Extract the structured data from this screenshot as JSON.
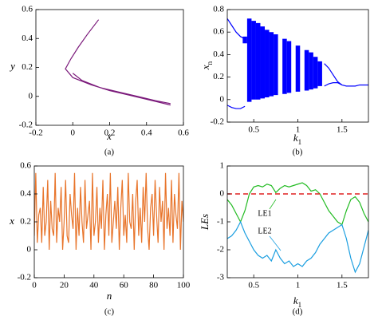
{
  "chart_data": [
    {
      "type": "line",
      "caption": "(a)",
      "xlabel": "x",
      "ylabel": "y",
      "x": [
        0.14,
        0.08,
        0.03,
        -0.01,
        -0.04,
        0.0,
        0.1,
        0.2,
        0.3,
        0.4,
        0.53,
        null,
        0.0,
        0.05,
        0.15,
        0.25,
        0.35,
        0.45,
        0.53
      ],
      "series": [
        {
          "color": "#7b1a7b",
          "values": [
            0.53,
            0.43,
            0.34,
            0.26,
            0.19,
            0.13,
            0.08,
            0.04,
            0.01,
            -0.02,
            -0.06,
            null,
            0.16,
            0.11,
            0.06,
            0.03,
            0.0,
            -0.03,
            -0.05
          ]
        }
      ],
      "xlim": [
        -0.2,
        0.6
      ],
      "xticks": [
        -0.2,
        0,
        0.2,
        0.4,
        0.6
      ],
      "ylim": [
        -0.2,
        0.6
      ],
      "yticks": [
        -0.2,
        0,
        0.2,
        0.4,
        0.6
      ]
    },
    {
      "type": "line",
      "caption": "(b)",
      "xlabel": "k",
      "xlabel_sub": "1",
      "ylabel": "x",
      "ylabel_sub": "n",
      "x": [
        0.2,
        0.25,
        0.3,
        0.35,
        0.4,
        0.45,
        0.5,
        0.55,
        0.6,
        0.65,
        0.7,
        0.75,
        0.8,
        0.85,
        0.9,
        0.95,
        1.0,
        1.05,
        1.1,
        1.15,
        1.2,
        1.25,
        1.3,
        1.35,
        1.4,
        1.45,
        1.5,
        1.55,
        1.6,
        1.65,
        1.7,
        1.75,
        1.8
      ],
      "series": [
        {
          "color": "#0000ff",
          "values": [
            0.72,
            0.66,
            0.6,
            0.56,
            0.54,
            null,
            null,
            null,
            null,
            null,
            null,
            null,
            null,
            null,
            null,
            null,
            null,
            null,
            null,
            null,
            null,
            null,
            0.32,
            0.28,
            0.22,
            0.16,
            0.13,
            0.12,
            0.12,
            0.12,
            0.13,
            0.13,
            0.13
          ]
        },
        {
          "color": "#0000ff",
          "values": [
            -0.05,
            -0.07,
            -0.08,
            -0.08,
            -0.06,
            null,
            null,
            null,
            null,
            null,
            null,
            null,
            null,
            null,
            null,
            null,
            null,
            null,
            null,
            null,
            null,
            null,
            0.12,
            0.14,
            0.15,
            0.15,
            0.13,
            null,
            null,
            null,
            null,
            null,
            null
          ]
        },
        {
          "color": "#0000ff",
          "values": [
            null,
            null,
            null,
            null,
            0.56,
            0.72,
            0.7,
            0.68,
            0.65,
            0.62,
            0.6,
            0.58,
            null,
            0.54,
            0.52,
            null,
            0.48,
            null,
            0.44,
            0.42,
            0.38,
            0.34,
            null,
            null,
            null,
            null,
            null,
            null,
            null,
            null,
            null,
            null,
            null
          ]
        },
        {
          "color": "#0000ff",
          "values": [
            null,
            null,
            null,
            null,
            0.5,
            -0.02,
            0.0,
            0.0,
            0.01,
            0.02,
            0.03,
            0.04,
            null,
            0.05,
            0.06,
            null,
            0.07,
            null,
            0.08,
            0.09,
            0.1,
            0.12,
            null,
            null,
            null,
            null,
            null,
            null,
            null,
            null,
            null,
            null,
            null
          ]
        }
      ],
      "fill_between": [
        2,
        3
      ],
      "xlim": [
        0.2,
        1.8
      ],
      "xticks": [
        0.5,
        1,
        1.5
      ],
      "ylim": [
        -0.2,
        0.8
      ],
      "yticks": [
        -0.2,
        0,
        0.2,
        0.4,
        0.6,
        0.8
      ]
    },
    {
      "type": "line",
      "caption": "(c)",
      "xlabel": "n",
      "ylabel": "x",
      "x": [
        0,
        1,
        2,
        3,
        4,
        5,
        6,
        7,
        8,
        9,
        10,
        11,
        12,
        13,
        14,
        15,
        16,
        17,
        18,
        19,
        20,
        21,
        22,
        23,
        24,
        25,
        26,
        27,
        28,
        29,
        30,
        31,
        32,
        33,
        34,
        35,
        36,
        37,
        38,
        39,
        40,
        41,
        42,
        43,
        44,
        45,
        46,
        47,
        48,
        49,
        50,
        51,
        52,
        53,
        54,
        55,
        56,
        57,
        58,
        59,
        60,
        61,
        62,
        63,
        64,
        65,
        66,
        67,
        68,
        69,
        70,
        71,
        72,
        73,
        74,
        75,
        76,
        77,
        78,
        79,
        80,
        81,
        82,
        83,
        84,
        85,
        86,
        87,
        88,
        89,
        90,
        91,
        92,
        93,
        94,
        95,
        96,
        97,
        98,
        99,
        100
      ],
      "series": [
        {
          "color": "#e8742a",
          "values": [
            0.1,
            0.55,
            0.05,
            0.25,
            0.3,
            0.05,
            0.45,
            0.1,
            0.2,
            0.5,
            0.0,
            0.35,
            0.15,
            0.1,
            0.55,
            0.05,
            0.3,
            0.2,
            0.45,
            0.0,
            0.2,
            0.5,
            0.1,
            0.05,
            0.4,
            0.25,
            0.15,
            0.55,
            0.0,
            0.3,
            0.1,
            0.45,
            0.2,
            0.05,
            0.5,
            0.15,
            0.25,
            0.35,
            0.0,
            0.55,
            0.1,
            0.2,
            0.45,
            0.05,
            0.3,
            0.15,
            0.5,
            0.0,
            0.25,
            0.4,
            0.1,
            0.55,
            0.05,
            0.2,
            0.35,
            0.15,
            0.45,
            0.0,
            0.3,
            0.5,
            0.1,
            0.25,
            0.05,
            0.55,
            0.2,
            0.15,
            0.4,
            0.0,
            0.35,
            0.5,
            0.1,
            0.3,
            0.05,
            0.45,
            0.2,
            0.55,
            0.15,
            0.0,
            0.3,
            0.4,
            0.1,
            0.5,
            0.25,
            0.05,
            0.45,
            0.2,
            0.35,
            0.0,
            0.55,
            0.15,
            0.3,
            0.1,
            0.5,
            0.05,
            0.4,
            0.25,
            0.15,
            0.55,
            0.0,
            0.35,
            0.2
          ]
        }
      ],
      "xlim": [
        0,
        100
      ],
      "xticks": [
        0,
        20,
        40,
        60,
        80,
        100
      ],
      "ylim": [
        -0.2,
        0.6
      ],
      "yticks": [
        -0.2,
        0,
        0.2,
        0.4,
        0.6
      ]
    },
    {
      "type": "line",
      "caption": "(d)",
      "xlabel": "k",
      "xlabel_sub": "1",
      "ylabel": "LEs",
      "x": [
        0.2,
        0.25,
        0.3,
        0.35,
        0.4,
        0.45,
        0.5,
        0.55,
        0.6,
        0.65,
        0.7,
        0.75,
        0.8,
        0.85,
        0.9,
        0.95,
        1.0,
        1.05,
        1.1,
        1.15,
        1.2,
        1.25,
        1.3,
        1.35,
        1.4,
        1.45,
        1.5,
        1.55,
        1.6,
        1.65,
        1.7,
        1.75,
        1.8
      ],
      "series": [
        {
          "name": "LE1",
          "color": "#22bb22",
          "values": [
            -0.2,
            -0.4,
            -0.7,
            -1.0,
            -0.6,
            0.0,
            0.25,
            0.3,
            0.25,
            0.35,
            0.3,
            0.05,
            0.2,
            0.3,
            0.25,
            0.3,
            0.35,
            0.4,
            0.3,
            0.1,
            0.15,
            0.0,
            -0.3,
            -0.6,
            -0.8,
            -1.0,
            -1.1,
            -0.6,
            -0.2,
            -0.1,
            -0.3,
            -0.7,
            -1.0
          ]
        },
        {
          "name": "LE2",
          "color": "#1a9ee0",
          "values": [
            -1.6,
            -1.5,
            -1.3,
            -1.0,
            -1.4,
            -1.7,
            -2.0,
            -2.2,
            -2.3,
            -2.2,
            -2.4,
            -2.0,
            -2.3,
            -2.5,
            -2.4,
            -2.6,
            -2.5,
            -2.6,
            -2.4,
            -2.3,
            -2.1,
            -1.8,
            -1.6,
            -1.4,
            -1.3,
            -1.2,
            -1.1,
            -1.6,
            -2.3,
            -2.8,
            -2.5,
            -1.9,
            -1.3
          ]
        }
      ],
      "hline": {
        "value": 0,
        "color": "#e02020"
      },
      "xlim": [
        0.2,
        1.8
      ],
      "xticks": [
        0.5,
        1,
        1.5
      ],
      "ylim": [
        -3,
        1
      ],
      "yticks": [
        -3,
        -2,
        -1,
        0,
        1
      ]
    }
  ]
}
